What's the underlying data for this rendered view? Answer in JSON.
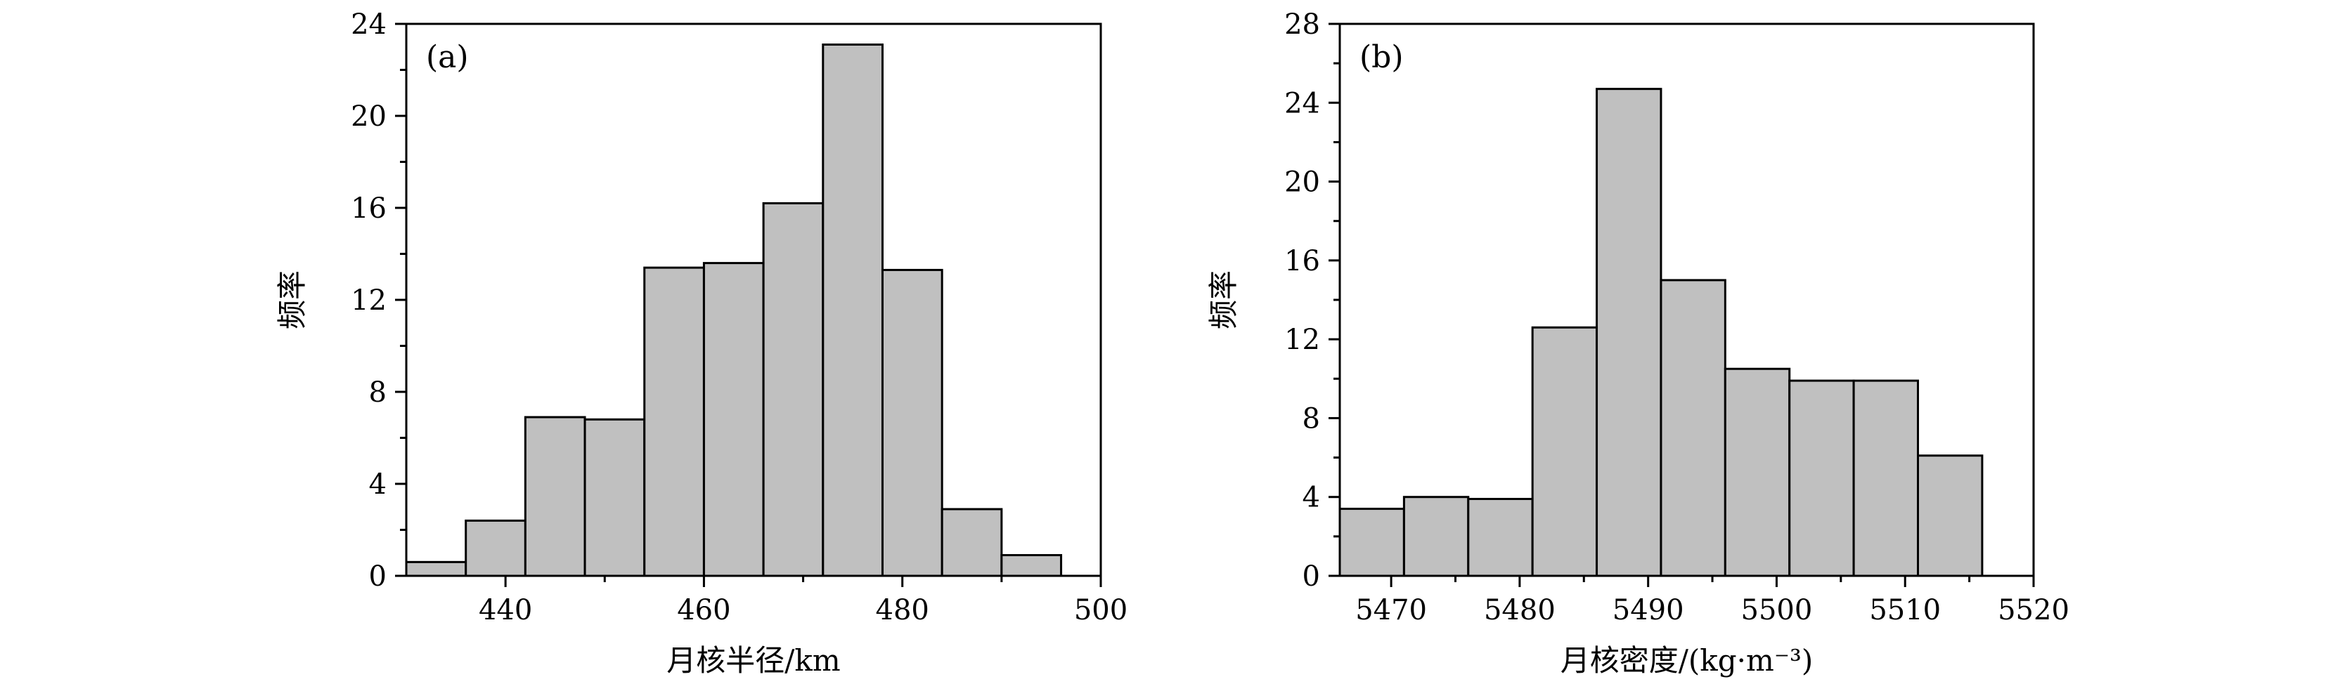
{
  "chart_data": [
    {
      "type": "bar",
      "panel_label": "(a)",
      "xlabel": "月核半径/km",
      "ylabel": "频率",
      "xlim": [
        430,
        500
      ],
      "ylim": [
        0,
        24
      ],
      "xticks": [
        440,
        460,
        480,
        500
      ],
      "yticks": [
        0,
        4,
        8,
        12,
        16,
        20,
        24
      ],
      "grid": false,
      "bins": [
        {
          "x0": 430,
          "x1": 436,
          "value": 0.6
        },
        {
          "x0": 436,
          "x1": 442,
          "value": 2.4
        },
        {
          "x0": 442,
          "x1": 448,
          "value": 6.9
        },
        {
          "x0": 448,
          "x1": 454,
          "value": 6.8
        },
        {
          "x0": 454,
          "x1": 460,
          "value": 13.4
        },
        {
          "x0": 460,
          "x1": 466,
          "value": 13.6
        },
        {
          "x0": 466,
          "x1": 472,
          "value": 16.2
        },
        {
          "x0": 472,
          "x1": 478,
          "value": 23.1
        },
        {
          "x0": 478,
          "x1": 484,
          "value": 13.3
        },
        {
          "x0": 484,
          "x1": 490,
          "value": 2.9
        },
        {
          "x0": 490,
          "x1": 496,
          "value": 0.9
        }
      ]
    },
    {
      "type": "bar",
      "panel_label": "(b)",
      "xlabel": "月核密度/(kg·m⁻³)",
      "ylabel": "频率",
      "xlim": [
        5466,
        5520
      ],
      "ylim": [
        0,
        28
      ],
      "xticks": [
        5470,
        5480,
        5490,
        5500,
        5510,
        5520
      ],
      "yticks": [
        0,
        4,
        8,
        12,
        16,
        20,
        24,
        28
      ],
      "grid": false,
      "bins": [
        {
          "x0": 5466,
          "x1": 5471,
          "value": 3.4
        },
        {
          "x0": 5471,
          "x1": 5476,
          "value": 4.0
        },
        {
          "x0": 5476,
          "x1": 5481,
          "value": 3.9
        },
        {
          "x0": 5481,
          "x1": 5486,
          "value": 12.6
        },
        {
          "x0": 5486,
          "x1": 5491,
          "value": 24.7
        },
        {
          "x0": 5491,
          "x1": 5496,
          "value": 15.0
        },
        {
          "x0": 5496,
          "x1": 5501,
          "value": 10.5
        },
        {
          "x0": 5501,
          "x1": 5506,
          "value": 9.9
        },
        {
          "x0": 5506,
          "x1": 5511,
          "value": 9.9
        },
        {
          "x0": 5511,
          "x1": 5516,
          "value": 6.1
        }
      ]
    }
  ]
}
